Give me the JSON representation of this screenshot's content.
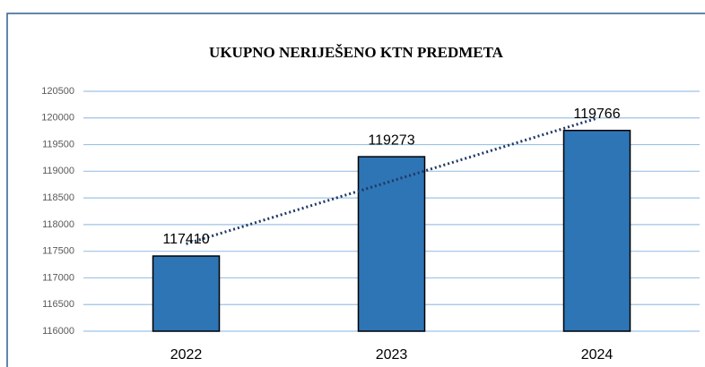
{
  "chart_data": {
    "type": "bar",
    "title": "UKUPNO NERIJEŠENO KTN PREDMETA",
    "categories": [
      "2022",
      "2023",
      "2024"
    ],
    "values": [
      117410,
      119273,
      119766
    ],
    "color": "#2e75b6",
    "ylim": [
      116000,
      120500
    ],
    "yticks": [
      116000,
      116500,
      117000,
      117500,
      118000,
      118500,
      119000,
      119500,
      120000,
      120500
    ],
    "grid": true,
    "trendline": "linear",
    "trendline_color": "#1f3864"
  }
}
